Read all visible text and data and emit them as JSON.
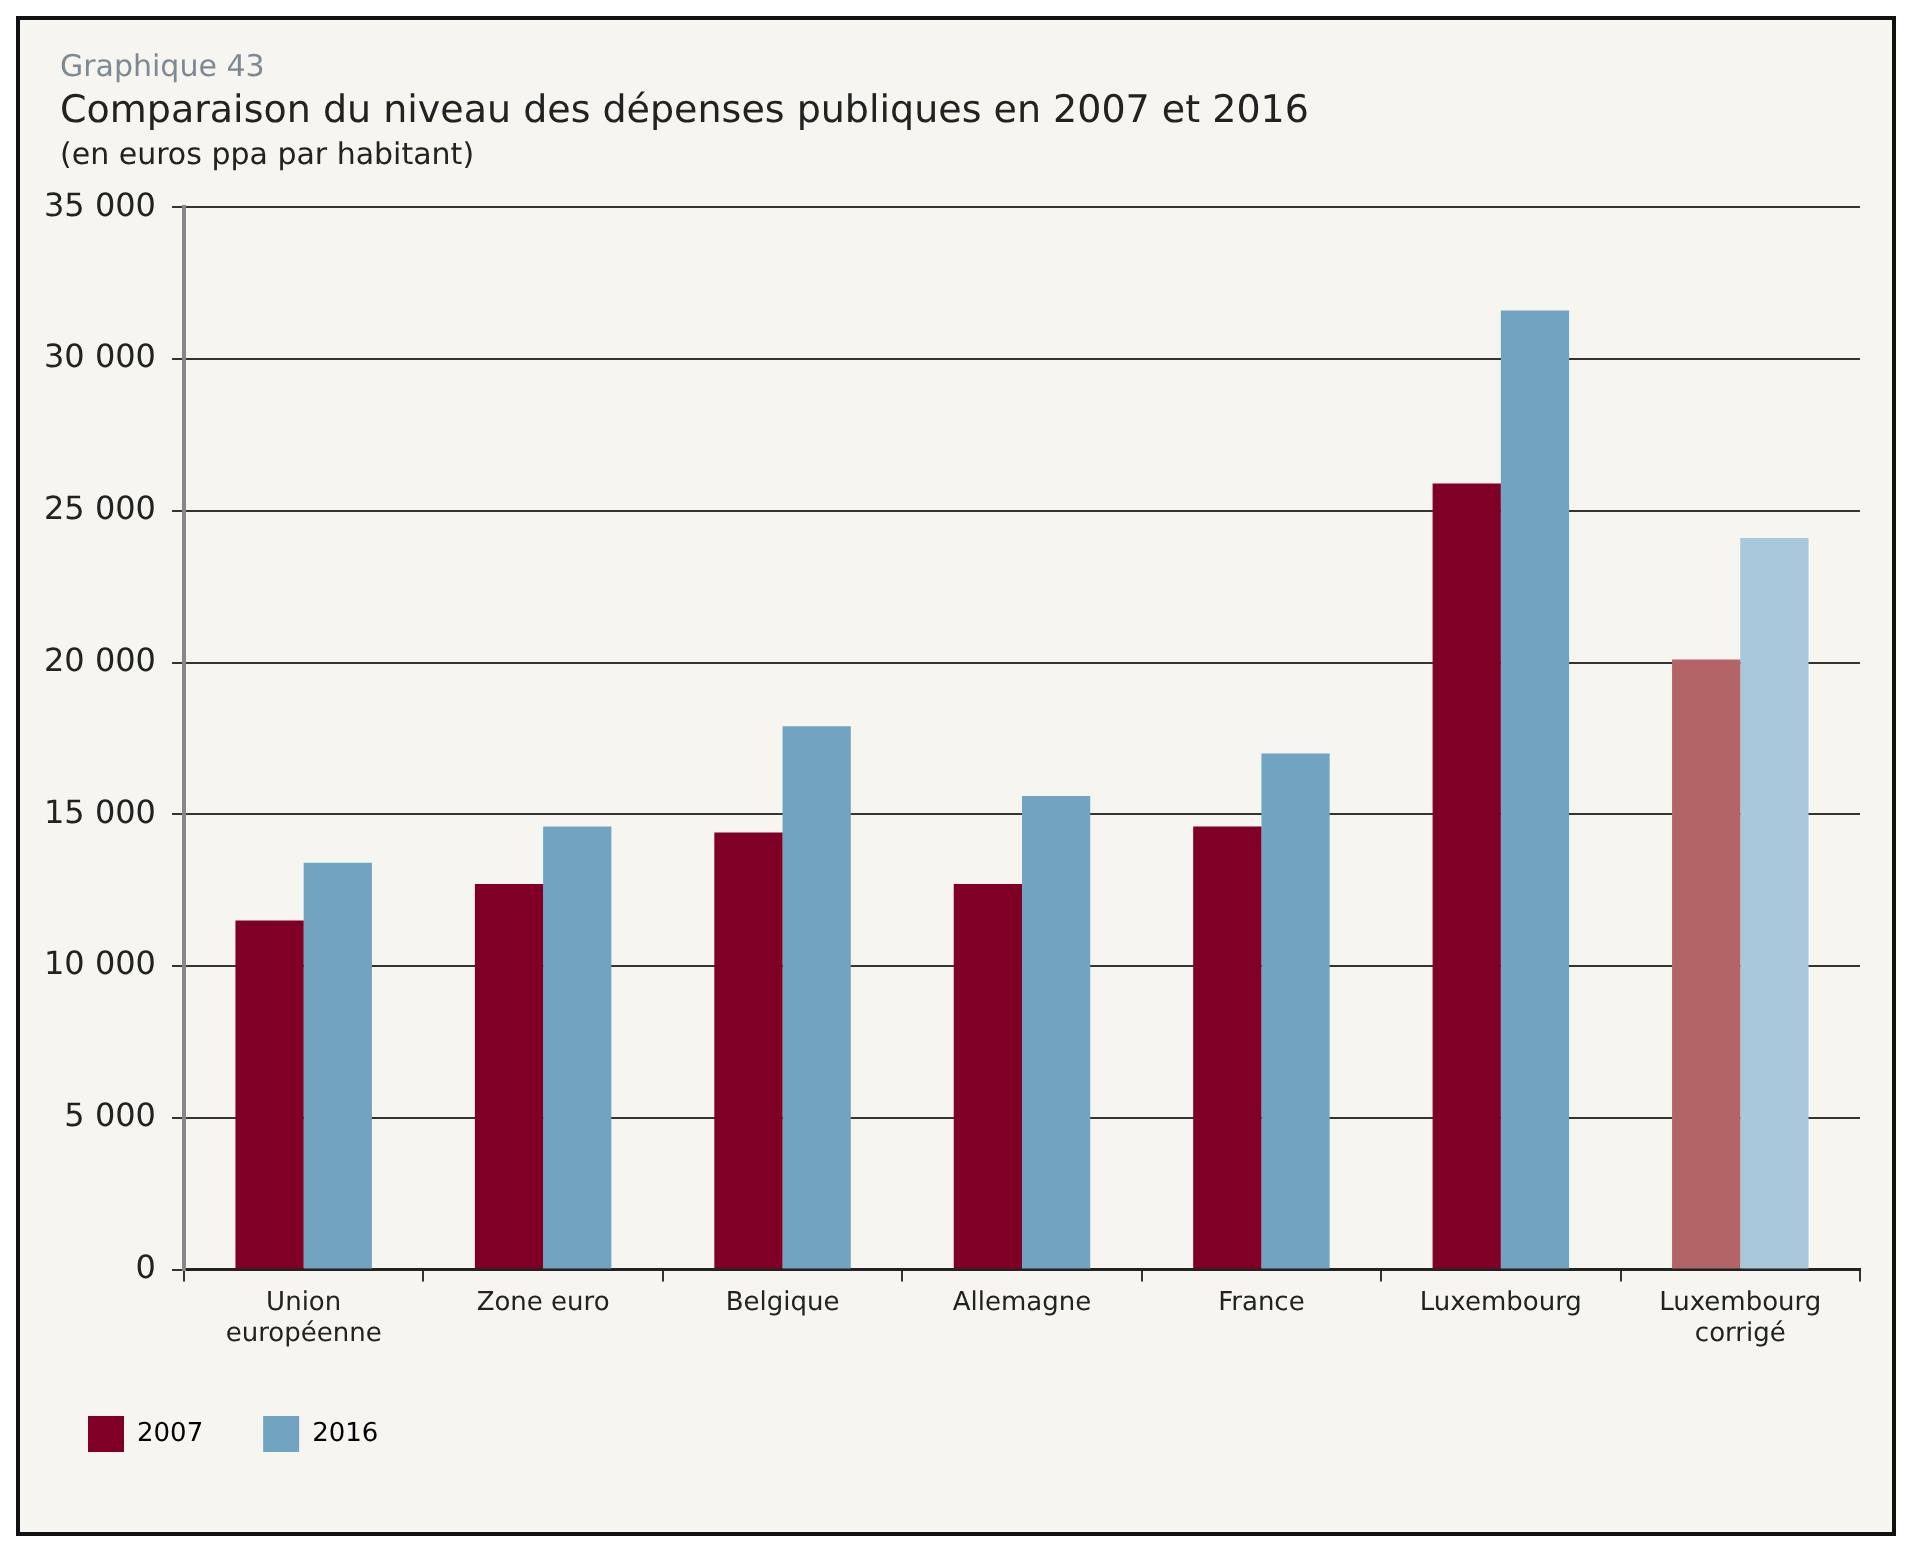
{
  "chart_data": {
    "type": "bar",
    "title": "Comparaison du niveau des dépenses publiques en 2007 et 2016",
    "subtitle": "(en euros ppa par habitant)",
    "annotations": [
      "Graphique 43"
    ],
    "categories": [
      "Union européenne",
      "Zone euro",
      "Belgique",
      "Allemagne",
      "France",
      "Luxembourg",
      "Luxembourg corrigé"
    ],
    "series": [
      {
        "name": "2007",
        "color": "#800025",
        "colors": [
          "#800025",
          "#800025",
          "#800025",
          "#800025",
          "#800025",
          "#800025",
          "#b36466"
        ],
        "values": [
          11500,
          12700,
          14400,
          12700,
          14600,
          25900,
          20100
        ]
      },
      {
        "name": "2016",
        "color": "#70a4c1",
        "colors": [
          "#70a4c1",
          "#70a4c1",
          "#70a4c1",
          "#70a4c1",
          "#70a4c1",
          "#70a4c1",
          "#a9c8dc"
        ],
        "values": [
          13400,
          14600,
          17900,
          15600,
          17000,
          31600,
          24100
        ]
      }
    ],
    "ylim": [
      0,
      35000
    ],
    "yticks": [
      {
        "value": 0,
        "label": "0"
      },
      {
        "value": 5000,
        "label": "5 000"
      },
      {
        "value": 10000,
        "label": "10 000"
      },
      {
        "value": 15000,
        "label": "15 000"
      },
      {
        "value": 20000,
        "label": "20 000"
      },
      {
        "value": 25000,
        "label": "25 000"
      },
      {
        "value": 30000,
        "label": "30 000"
      },
      {
        "value": 35000,
        "label": "35 000"
      }
    ],
    "grid": "y",
    "legend": "bottom left"
  }
}
